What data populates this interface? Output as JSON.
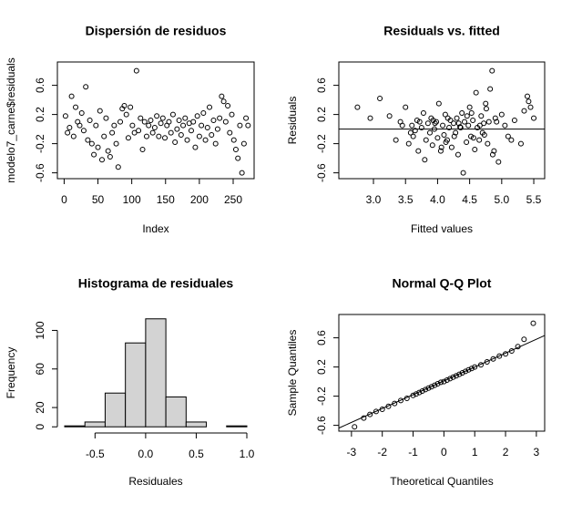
{
  "chart_data": [
    {
      "type": "scatter",
      "title": "Dispersión de residuos",
      "x_label": "Index",
      "y_label": "modelo7_carne$residuals",
      "x": [
        2,
        5,
        8,
        11,
        14,
        17,
        20,
        23,
        26,
        29,
        32,
        35,
        38,
        41,
        44,
        47,
        50,
        53,
        56,
        59,
        62,
        65,
        68,
        71,
        74,
        77,
        80,
        83,
        86,
        89,
        92,
        95,
        98,
        101,
        104,
        107,
        110,
        113,
        116,
        119,
        122,
        125,
        128,
        131,
        134,
        137,
        140,
        143,
        146,
        149,
        152,
        155,
        158,
        161,
        164,
        167,
        170,
        173,
        176,
        179,
        182,
        185,
        188,
        191,
        194,
        197,
        200,
        203,
        206,
        209,
        212,
        215,
        218,
        221,
        224,
        227,
        230,
        233,
        236,
        239,
        242,
        245,
        248,
        251,
        254,
        257,
        260,
        263,
        266,
        269,
        272
      ],
      "values": [
        0.18,
        -0.05,
        0.02,
        0.45,
        -0.1,
        0.3,
        0.1,
        0.05,
        0.22,
        -0.02,
        0.58,
        -0.15,
        0.12,
        -0.2,
        -0.35,
        0.05,
        -0.25,
        0.25,
        -0.42,
        -0.1,
        0.15,
        -0.3,
        -0.38,
        -0.05,
        0.05,
        -0.2,
        -0.52,
        0.1,
        0.28,
        0.32,
        0.2,
        -0.12,
        0.3,
        0.05,
        -0.05,
        0.8,
        -0.02,
        0.15,
        -0.28,
        0.1,
        -0.1,
        0.05,
        0.12,
        -0.05,
        0.02,
        0.18,
        -0.1,
        0.08,
        0.15,
        -0.12,
        0.05,
        0.1,
        -0.05,
        0.2,
        -0.18,
        0.0,
        0.12,
        -0.08,
        0.05,
        0.15,
        -0.15,
        0.08,
        -0.02,
        0.1,
        -0.25,
        0.18,
        -0.1,
        0.05,
        0.22,
        -0.15,
        0.02,
        0.3,
        -0.08,
        0.12,
        -0.2,
        0.0,
        0.15,
        0.45,
        0.38,
        0.1,
        0.32,
        -0.05,
        0.2,
        -0.15,
        -0.28,
        -0.4,
        0.05,
        -0.6,
        -0.2,
        0.15,
        0.05
      ],
      "xlim": [
        -10,
        281
      ],
      "ylim": [
        -0.68,
        0.92
      ],
      "xticks": [
        0,
        50,
        100,
        150,
        200,
        250
      ],
      "yticks": [
        -0.6,
        -0.2,
        0.2,
        0.6
      ],
      "color": "#000000"
    },
    {
      "type": "scatter",
      "title": "Residuals vs. fitted",
      "x_label": "Fitted values",
      "y_label": "Residuals",
      "x": [
        2.75,
        2.95,
        3.1,
        3.25,
        3.35,
        3.42,
        3.5,
        3.55,
        3.6,
        3.62,
        3.68,
        3.7,
        3.75,
        3.78,
        3.8,
        3.85,
        3.88,
        3.9,
        3.92,
        3.95,
        3.98,
        4.0,
        4.02,
        4.05,
        4.08,
        4.1,
        4.12,
        4.15,
        4.18,
        4.2,
        4.22,
        4.25,
        4.28,
        4.3,
        4.32,
        4.35,
        4.38,
        4.4,
        4.42,
        4.45,
        4.48,
        4.5,
        4.52,
        4.55,
        4.58,
        4.6,
        4.62,
        4.65,
        4.68,
        4.7,
        4.72,
        4.75,
        4.78,
        4.8,
        4.82,
        4.85,
        4.88,
        4.9,
        4.95,
        5.0,
        5.05,
        5.1,
        5.2,
        5.3,
        5.35,
        5.4,
        5.45,
        5.5,
        3.45,
        3.58,
        3.72,
        3.82,
        3.96,
        4.06,
        4.16,
        4.26,
        4.36,
        4.46,
        4.56,
        4.66,
        4.76,
        4.86,
        3.65,
        3.93,
        4.13,
        4.33,
        4.53,
        4.73,
        4.92,
        5.15,
        5.42
      ],
      "values": [
        0.3,
        0.15,
        0.42,
        0.18,
        -0.15,
        0.1,
        0.3,
        -0.2,
        0.05,
        -0.1,
        0.12,
        -0.3,
        0.02,
        0.22,
        -0.42,
        0.08,
        -0.05,
        0.15,
        -0.22,
        0.0,
        0.1,
        -0.12,
        0.35,
        -0.3,
        0.05,
        -0.08,
        0.2,
        -0.15,
        0.02,
        0.12,
        -0.25,
        0.08,
        -0.05,
        0.15,
        -0.35,
        0.03,
        0.22,
        -0.6,
        0.1,
        -0.18,
        0.05,
        0.3,
        -0.1,
        0.12,
        -0.28,
        0.5,
        0.02,
        -0.15,
        0.18,
        -0.05,
        0.08,
        0.35,
        -0.2,
        0.1,
        0.55,
        0.8,
        -0.3,
        0.15,
        -0.45,
        0.2,
        0.05,
        -0.1,
        0.12,
        -0.2,
        0.25,
        0.45,
        0.3,
        0.15,
        0.05,
        -0.05,
        0.1,
        -0.15,
        0.08,
        -0.25,
        0.15,
        -0.1,
        0.02,
        0.18,
        -0.12,
        0.05,
        0.28,
        -0.35,
        -0.02,
        0.12,
        -0.18,
        0.08,
        0.22,
        -0.08,
        0.1,
        -0.15,
        0.38
      ],
      "xlim": [
        2.46,
        5.67
      ],
      "ylim": [
        -0.68,
        0.92
      ],
      "xticks": [
        {
          "value": 3,
          "label": "3.0"
        },
        3.5,
        {
          "value": 4,
          "label": "4.0"
        },
        4.5,
        {
          "value": 5,
          "label": "5.0"
        },
        5.5
      ],
      "yticks": [
        -0.6,
        -0.2,
        0.2,
        0.6
      ],
      "hline": 0,
      "color": "#000000"
    },
    {
      "type": "histogram",
      "title": "Histograma de residuales",
      "x_label": "Residuales",
      "y_label": "Frequency",
      "bins": [
        -0.8,
        -0.6,
        -0.4,
        -0.2,
        0,
        0.2,
        0.4,
        0.6,
        0.8,
        1.0
      ],
      "values": [
        1,
        5,
        35,
        87,
        112,
        31,
        5,
        0,
        1
      ],
      "xlim": [
        -0.872,
        1.072
      ],
      "ylim": [
        -4.5,
        116.5
      ],
      "xticks": [
        -0.5,
        {
          "value": 0,
          "label": "0.0"
        },
        0.5,
        {
          "value": 1,
          "label": "1.0"
        }
      ],
      "yticks": [
        0,
        20,
        60,
        100
      ],
      "color": "#d3d3d3"
    },
    {
      "type": "qq",
      "title": "Normal Q-Q Plot",
      "x_label": "Theoretical Quantiles",
      "y_label": "Sample Quantiles",
      "x": [
        -2.9,
        -2.6,
        -2.4,
        -2.2,
        -2.0,
        -1.8,
        -1.6,
        -1.4,
        -1.2,
        -1.0,
        -0.9,
        -0.8,
        -0.7,
        -0.6,
        -0.5,
        -0.4,
        -0.3,
        -0.2,
        -0.1,
        0,
        0.1,
        0.2,
        0.3,
        0.4,
        0.5,
        0.6,
        0.7,
        0.8,
        0.9,
        1.0,
        1.2,
        1.4,
        1.6,
        1.8,
        2.0,
        2.2,
        2.4,
        2.6,
        2.9
      ],
      "values": [
        -0.62,
        -0.5,
        -0.45,
        -0.41,
        -0.38,
        -0.34,
        -0.3,
        -0.26,
        -0.23,
        -0.19,
        -0.17,
        -0.15,
        -0.13,
        -0.11,
        -0.09,
        -0.07,
        -0.05,
        -0.03,
        -0.01,
        0.0,
        0.02,
        0.04,
        0.06,
        0.08,
        0.1,
        0.12,
        0.14,
        0.16,
        0.18,
        0.2,
        0.23,
        0.27,
        0.31,
        0.35,
        0.38,
        0.42,
        0.48,
        0.58,
        0.8
      ],
      "xlim": [
        -3.41,
        3.27
      ],
      "ylim": [
        -0.68,
        0.92
      ],
      "xticks": [
        -3,
        -2,
        -1,
        0,
        1,
        2,
        3
      ],
      "yticks": [
        -0.6,
        -0.2,
        0.2,
        0.6
      ],
      "line": {
        "intercept": 0.01,
        "slope": 0.19
      },
      "color": "#000000"
    }
  ]
}
